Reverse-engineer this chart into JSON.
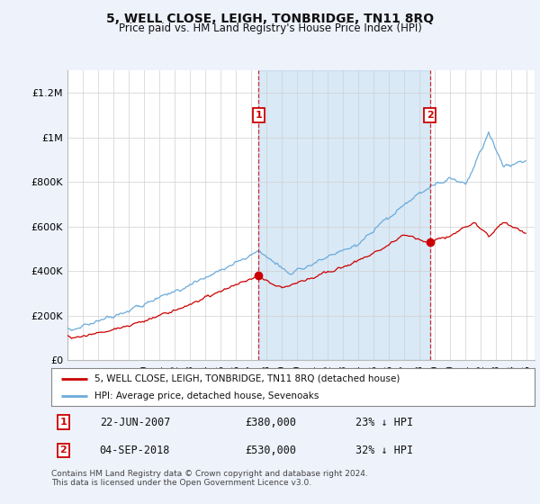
{
  "title": "5, WELL CLOSE, LEIGH, TONBRIDGE, TN11 8RQ",
  "subtitle": "Price paid vs. HM Land Registry's House Price Index (HPI)",
  "ylabel_ticks": [
    "£0",
    "£200K",
    "£400K",
    "£600K",
    "£800K",
    "£1M",
    "£1.2M"
  ],
  "ytick_vals": [
    0,
    200000,
    400000,
    600000,
    800000,
    1000000,
    1200000
  ],
  "ylim": [
    0,
    1300000
  ],
  "xlim_start": 1995.0,
  "xlim_end": 2025.5,
  "hpi_color": "#6aabdc",
  "hpi_fill_color": "#daeaf7",
  "price_color": "#cc0000",
  "sale1_price_val": 380000,
  "sale1_pct": "23%",
  "sale1_x": 2007.47,
  "sale2_price_val": 530000,
  "sale2_pct": "32%",
  "sale2_x": 2018.67,
  "sale1_date": "22-JUN-2007",
  "sale2_date": "04-SEP-2018",
  "legend_label1": "5, WELL CLOSE, LEIGH, TONBRIDGE, TN11 8RQ (detached house)",
  "legend_label2": "HPI: Average price, detached house, Sevenoaks",
  "footnote": "Contains HM Land Registry data © Crown copyright and database right 2024.\nThis data is licensed under the Open Government Licence v3.0.",
  "background_color": "#eef2fb",
  "plot_bg_color": "#ffffff"
}
